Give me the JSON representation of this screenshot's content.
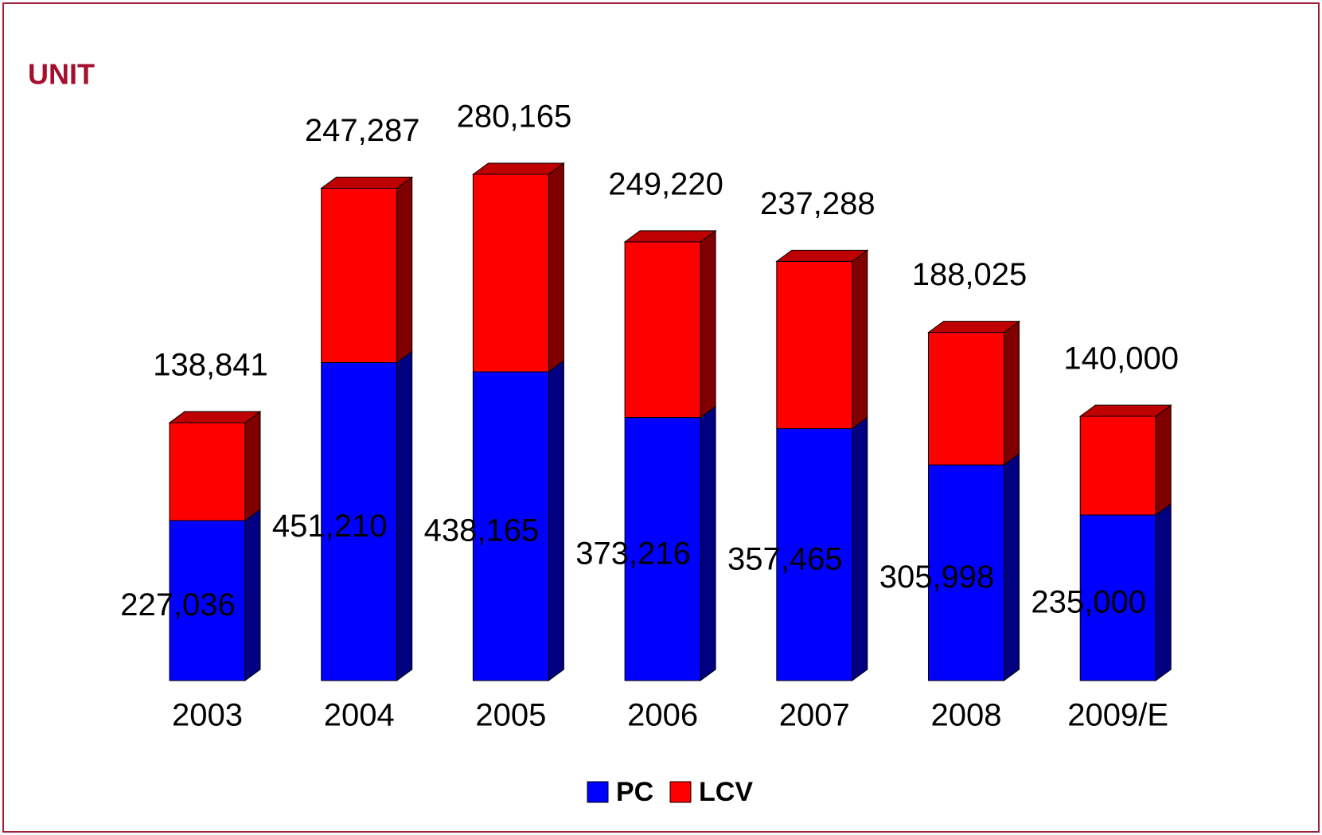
{
  "chart_data": {
    "type": "bar",
    "stacked": true,
    "title": "UNIT",
    "categories": [
      "2003",
      "2004",
      "2005",
      "2006",
      "2007",
      "2008",
      "2009/E"
    ],
    "series": [
      {
        "name": "PC",
        "color": "#0000ff",
        "values": [
          227036,
          451210,
          438165,
          373216,
          357465,
          305998,
          235000
        ],
        "value_labels": [
          "227,036",
          "451,210",
          "438,165",
          "373,216",
          "357,465",
          "305,998",
          "235,000"
        ]
      },
      {
        "name": "LCV",
        "color": "#ff0000",
        "values": [
          138841,
          247287,
          280165,
          249220,
          237288,
          188025,
          140000
        ],
        "value_labels": [
          "138,841",
          "247,287",
          "280,165",
          "249,220",
          "237,288",
          "188,025",
          "140,000"
        ]
      }
    ],
    "legend": "bottom"
  }
}
